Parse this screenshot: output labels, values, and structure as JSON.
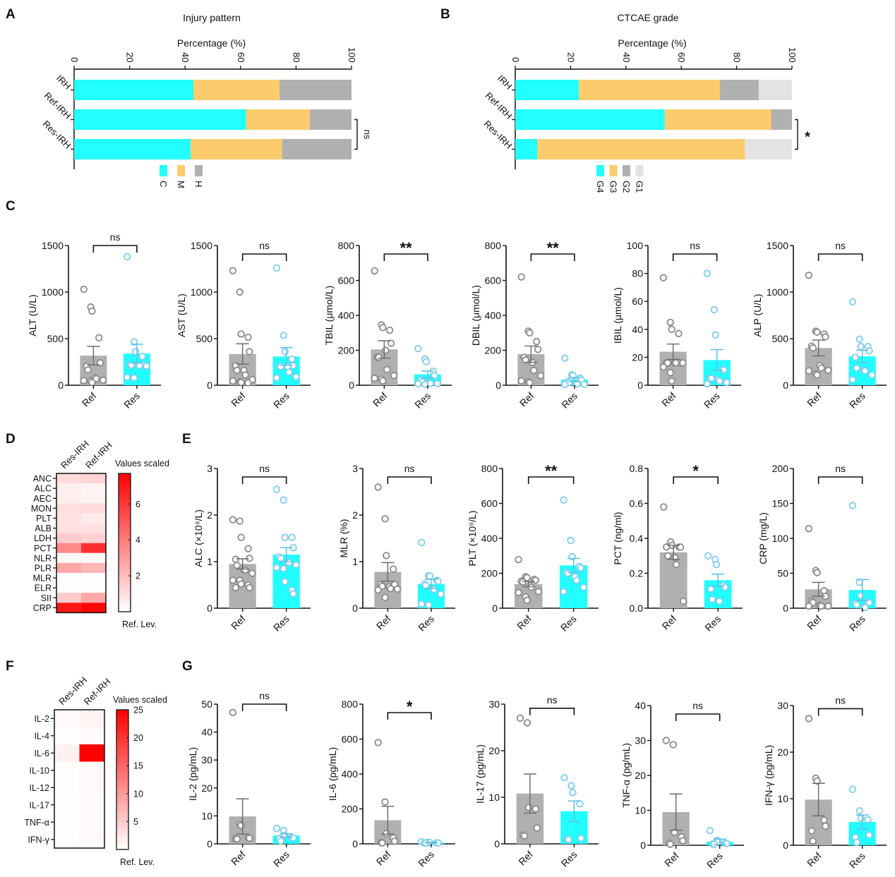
{
  "colors": {
    "cyan": "#22FFFF",
    "orange": "#FCCB6B",
    "gray": "#B0B0B0",
    "lightgray": "#E3E3E3",
    "ref_point": "#8A8A8A",
    "res_point": "#7FCCEB",
    "heat_max": "#FF0000",
    "axis": "#111111"
  },
  "panel_letters": [
    "A",
    "B",
    "C",
    "D",
    "E",
    "F",
    "G"
  ],
  "chart_data": [
    {
      "id": "A",
      "type": "bar",
      "orientation": "horizontal-stacked",
      "title": "Injury pattern",
      "xlabel": "Percentage (%)",
      "xlim": [
        0,
        100
      ],
      "xticks": [
        "0",
        "20",
        "40",
        "60",
        "80",
        "100"
      ],
      "categories": [
        "IRH",
        "Ref-IRH",
        "Res-IRH"
      ],
      "series": [
        {
          "name": "C",
          "color": "cyan",
          "values": [
            43,
            62,
            42
          ]
        },
        {
          "name": "M",
          "color": "orange",
          "values": [
            31,
            23,
            33
          ]
        },
        {
          "name": "H",
          "color": "gray",
          "values": [
            26,
            15,
            25
          ]
        }
      ],
      "comparison": {
        "between": [
          "Ref-IRH",
          "Res-IRH"
        ],
        "label": "ns"
      },
      "legend": [
        "C",
        "M",
        "H"
      ],
      "legend_position": "bottom"
    },
    {
      "id": "B",
      "type": "bar",
      "orientation": "horizontal-stacked",
      "title": "CTCAE grade",
      "xlabel": "Percentage (%)",
      "xlim": [
        0,
        100
      ],
      "xticks": [
        "0",
        "20",
        "40",
        "60",
        "80",
        "100"
      ],
      "categories": [
        "IRH",
        "Ref-IRH",
        "Res-IRH"
      ],
      "series": [
        {
          "name": "G4",
          "color": "cyan",
          "values": [
            23,
            54,
            8
          ]
        },
        {
          "name": "G3",
          "color": "orange",
          "values": [
            51,
            38.5,
            75
          ]
        },
        {
          "name": "G2",
          "color": "gray",
          "values": [
            14,
            7.5,
            0
          ]
        },
        {
          "name": "G1",
          "color": "lightgray",
          "values": [
            12,
            0,
            17
          ]
        }
      ],
      "comparison": {
        "between": [
          "Ref-IRH",
          "Res-IRH"
        ],
        "label": "*"
      },
      "legend": [
        "G4",
        "G3",
        "G2",
        "G1"
      ],
      "legend_position": "bottom"
    },
    {
      "id": "C1",
      "type": "bar",
      "ylabel": "ALT (U/L)",
      "ylim": [
        0,
        1500
      ],
      "yticks": [
        "0",
        "500",
        "1000",
        "1500"
      ],
      "categories": [
        "Ref",
        "Res"
      ],
      "means": [
        318,
        340
      ],
      "sem": [
        100,
        100
      ],
      "sig": "ns",
      "points": {
        "Ref": [
          1030,
          840,
          795,
          510,
          240,
          205,
          165,
          80,
          70,
          55,
          50,
          45,
          30
        ],
        "Res": [
          1380,
          465,
          360,
          310,
          220,
          220,
          215,
          215,
          210,
          205,
          85,
          80
        ]
      }
    },
    {
      "id": "C2",
      "type": "bar",
      "ylabel": "AST (U/L)",
      "ylim": [
        0,
        1500
      ],
      "yticks": [
        "0",
        "500",
        "1000",
        "1500"
      ],
      "categories": [
        "Ref",
        "Res"
      ],
      "means": [
        335,
        308
      ],
      "sem": [
        110,
        95
      ],
      "sig": "ns",
      "points": {
        "Ref": [
          1230,
          1000,
          550,
          515,
          360,
          210,
          160,
          160,
          110,
          60,
          45,
          35,
          30,
          25
        ],
        "Res": [
          1260,
          535,
          360,
          280,
          210,
          200,
          200,
          200,
          140,
          90,
          80
        ]
      }
    },
    {
      "id": "C3",
      "type": "bar",
      "ylabel": "TBIL (μmol/L)",
      "ylim": [
        0,
        800
      ],
      "yticks": [
        "0",
        "200",
        "400",
        "600",
        "800"
      ],
      "categories": [
        "Ref",
        "Res"
      ],
      "means": [
        205,
        62
      ],
      "sem": [
        50,
        20
      ],
      "sig": "**",
      "points": {
        "Ref": [
          655,
          345,
          330,
          315,
          240,
          160,
          160,
          200,
          90,
          55,
          40,
          35,
          25
        ],
        "Res": [
          210,
          150,
          135,
          80,
          55,
          30,
          20,
          15,
          10,
          10,
          8,
          5
        ]
      }
    },
    {
      "id": "C4",
      "type": "bar",
      "ylabel": "DBIL (μmol/L)",
      "ylim": [
        0,
        800
      ],
      "yticks": [
        "0",
        "200",
        "400",
        "600",
        "800"
      ],
      "categories": [
        "Ref",
        "Res"
      ],
      "means": [
        178,
        32
      ],
      "sem": [
        47,
        12
      ],
      "sig": "**",
      "points": {
        "Ref": [
          620,
          310,
          300,
          250,
          205,
          160,
          145,
          130,
          85,
          55,
          25,
          20,
          15
        ],
        "Res": [
          155,
          60,
          55,
          40,
          30,
          20,
          15,
          10,
          8,
          5,
          5
        ]
      }
    },
    {
      "id": "C5",
      "type": "bar",
      "ylabel": "IBIL (μmol/L)",
      "ylim": [
        0,
        100
      ],
      "yticks": [
        "0",
        "20",
        "40",
        "60",
        "80",
        "100"
      ],
      "categories": [
        "Ref",
        "Res"
      ],
      "means": [
        24,
        18
      ],
      "sem": [
        5.5,
        7.5
      ],
      "sig": "ns",
      "points": {
        "Ref": [
          77,
          45,
          40,
          37,
          16,
          16,
          16,
          16,
          16,
          16,
          13,
          9,
          3
        ],
        "Res": [
          80,
          54,
          36,
          11,
          11,
          5,
          5,
          4,
          3,
          2,
          1
        ]
      }
    },
    {
      "id": "C6",
      "type": "bar",
      "ylabel": "ALP (U/L)",
      "ylim": [
        0,
        1500
      ],
      "yticks": [
        "0",
        "500",
        "1000",
        "1500"
      ],
      "categories": [
        "Ref",
        "Res"
      ],
      "means": [
        400,
        310
      ],
      "sem": [
        85,
        65
      ],
      "sig": "ns",
      "points": {
        "Ref": [
          1180,
          580,
          570,
          550,
          520,
          420,
          400,
          210,
          185,
          160,
          155,
          120,
          110
        ],
        "Res": [
          895,
          495,
          415,
          415,
          370,
          300,
          185,
          160,
          155,
          110,
          60
        ]
      }
    },
    {
      "id": "D",
      "type": "heatmap",
      "columns": [
        "Res-IRH",
        "Ref-IRH"
      ],
      "rows": [
        "ANC",
        "ALC",
        "AEC",
        "MON",
        "PLT",
        "ALB",
        "LDH",
        "PCT",
        "NLR",
        "PLR",
        "MLR",
        "ELR",
        "SII",
        "CRP"
      ],
      "values": [
        [
          1.1,
          1.3
        ],
        [
          0.5,
          0.4
        ],
        [
          0.5,
          0.4
        ],
        [
          1.0,
          1.1
        ],
        [
          0.9,
          0.6
        ],
        [
          0.9,
          0.9
        ],
        [
          1.5,
          1.4
        ],
        [
          3.6,
          6.3
        ],
        [
          0.2,
          0.2
        ],
        [
          2.7,
          2.2
        ],
        [
          0.1,
          0.1
        ],
        [
          0.1,
          0.1
        ],
        [
          1.6,
          2.6
        ],
        [
          7.0,
          7.5
        ]
      ],
      "colorbar": {
        "title": "Values scaled",
        "ticks": [
          "2",
          "4",
          "6"
        ],
        "range": [
          0,
          7.7
        ],
        "bottom_label": "Ref. Lev."
      }
    },
    {
      "id": "E1",
      "type": "bar",
      "ylabel": "ALC (×10⁹/L)",
      "ylim": [
        0,
        3
      ],
      "yticks": [
        "0",
        "1",
        "2",
        "3"
      ],
      "categories": [
        "Ref",
        "Res"
      ],
      "means": [
        0.95,
        1.15
      ],
      "sem": [
        0.11,
        0.15
      ],
      "sig": "ns",
      "points": {
        "Ref": [
          1.9,
          1.87,
          1.52,
          1.28,
          1.07,
          1.05,
          0.92,
          0.82,
          0.82,
          0.75,
          0.6,
          0.6,
          0.52,
          0.5,
          0.44,
          0.44
        ],
        "Res": [
          2.55,
          2.32,
          1.52,
          1.52,
          1.3,
          1.1,
          1.07,
          0.98,
          0.98,
          0.93,
          0.87,
          0.85,
          0.57,
          0.39,
          0.31
        ]
      }
    },
    {
      "id": "E2",
      "type": "bar",
      "ylabel": "MLR (%)",
      "ylim": [
        0,
        3
      ],
      "yticks": [
        "0",
        "1",
        "2",
        "3"
      ],
      "categories": [
        "Ref",
        "Res"
      ],
      "means": [
        0.78,
        0.52
      ],
      "sem": [
        0.2,
        0.1
      ],
      "sig": "ns",
      "points": {
        "Ref": [
          2.6,
          1.92,
          1.13,
          0.84,
          0.51,
          0.51,
          0.47,
          0.46,
          0.42,
          0.41,
          0.39,
          0.23
        ],
        "Res": [
          1.41,
          0.7,
          0.69,
          0.6,
          0.58,
          0.52,
          0.49,
          0.42,
          0.4,
          0.3,
          0.09,
          0.07
        ]
      }
    },
    {
      "id": "E3",
      "type": "bar",
      "ylabel": "PLT (×10⁹/L)",
      "ylim": [
        0,
        800
      ],
      "yticks": [
        "0",
        "200",
        "400",
        "600",
        "800"
      ],
      "categories": [
        "Ref",
        "Res"
      ],
      "means": [
        138,
        245
      ],
      "sem": [
        15,
        40
      ],
      "sig": "**",
      "points": {
        "Ref": [
          278,
          180,
          175,
          165,
          160,
          155,
          150,
          130,
          120,
          95,
          90,
          65,
          45
        ],
        "Res": [
          620,
          388,
          295,
          240,
          230,
          205,
          200,
          180,
          160,
          120,
          95
        ]
      }
    },
    {
      "id": "E4",
      "type": "bar",
      "ylabel": "PCT (ng/ml)",
      "ylim": [
        0,
        0.8
      ],
      "yticks": [
        "0.0",
        "0.2",
        "0.4",
        "0.6",
        "0.8"
      ],
      "categories": [
        "Ref",
        "Res"
      ],
      "means": [
        0.32,
        0.16
      ],
      "sem": [
        0.04,
        0.035
      ],
      "sig": "*",
      "points": {
        "Ref": [
          0.58,
          0.38,
          0.36,
          0.35,
          0.35,
          0.35,
          0.3,
          0.29,
          0.25,
          0.04
        ],
        "Res": [
          0.3,
          0.28,
          0.25,
          0.13,
          0.12,
          0.11,
          0.05,
          0.04
        ]
      }
    },
    {
      "id": "E5",
      "type": "bar",
      "ylabel": "CRP (mg/L)",
      "ylim": [
        0,
        200
      ],
      "yticks": [
        "0",
        "50",
        "100",
        "150",
        "200"
      ],
      "categories": [
        "Ref",
        "Res"
      ],
      "means": [
        27,
        26
      ],
      "sem": [
        10,
        15
      ],
      "sig": "ns",
      "points": {
        "Ref": [
          114,
          54,
          51,
          25,
          17,
          10,
          8,
          4,
          3,
          3,
          3
        ],
        "Res": [
          147,
          37,
          18,
          9,
          8,
          7,
          5,
          1,
          1
        ]
      }
    },
    {
      "id": "F",
      "type": "heatmap",
      "columns": [
        "Res-IRH",
        "Ref-IRH"
      ],
      "rows": [
        "IL-2",
        "IL-4",
        "IL-6",
        "IL-10",
        "IL-12",
        "IL-17",
        "TNF-α",
        "IFN-γ"
      ],
      "values": [
        [
          0.6,
          1.1
        ],
        [
          0.3,
          0.4
        ],
        [
          1.4,
          25
        ],
        [
          0.3,
          0.6
        ],
        [
          0.3,
          0.6
        ],
        [
          0.3,
          0.5
        ],
        [
          0.2,
          0.5
        ],
        [
          0.3,
          0.6
        ]
      ],
      "colorbar": {
        "title": "Values scaled",
        "ticks": [
          "5",
          "10",
          "15",
          "20",
          "25"
        ],
        "range": [
          0,
          25
        ],
        "bottom_label": "Ref. Lev."
      }
    },
    {
      "id": "G1",
      "type": "bar",
      "ylabel": "IL-2 (pg/mL)",
      "ylim": [
        0,
        50
      ],
      "yticks": [
        "0",
        "10",
        "20",
        "30",
        "40",
        "50"
      ],
      "categories": [
        "Ref",
        "Res"
      ],
      "means": [
        9.8,
        3.0
      ],
      "sem": [
        6.3,
        0.6
      ],
      "sig": "ns",
      "points": {
        "Ref": [
          47,
          7,
          6.5,
          2.3,
          2,
          1.8,
          1.7
        ],
        "Res": [
          5.5,
          4.8,
          3,
          2.2,
          2.1,
          1.9,
          1
        ]
      }
    },
    {
      "id": "G2",
      "type": "bar",
      "ylabel": "IL-6 (pg/mL)",
      "ylim": [
        0,
        800
      ],
      "yticks": [
        "0",
        "200",
        "400",
        "600",
        "800"
      ],
      "categories": [
        "Ref",
        "Res"
      ],
      "means": [
        135,
        7
      ],
      "sem": [
        80,
        2
      ],
      "sig": "*",
      "points": {
        "Ref": [
          580,
          240,
          60,
          35,
          15,
          8,
          5
        ],
        "Res": [
          12,
          10,
          8,
          6,
          5,
          5,
          5
        ]
      }
    },
    {
      "id": "G3",
      "type": "bar",
      "ylabel": "IL-17 (pg/mL)",
      "ylim": [
        0,
        30
      ],
      "yticks": [
        "0",
        "10",
        "20",
        "30"
      ],
      "categories": [
        "Ref",
        "Res"
      ],
      "means": [
        10.8,
        7.0
      ],
      "sem": [
        4.2,
        2.2
      ],
      "sig": "ns",
      "points": {
        "Ref": [
          27,
          26,
          7.8,
          7.5,
          3.4,
          1.9,
          1.7
        ],
        "Res": [
          14.2,
          12.5,
          11,
          8.6,
          1.2,
          1,
          0.9
        ]
      }
    },
    {
      "id": "G4",
      "type": "bar",
      "ylabel": "TNF-α (pg/mL)",
      "ylim": [
        0,
        40
      ],
      "yticks": [
        "0",
        "10",
        "20",
        "30",
        "40"
      ],
      "categories": [
        "Ref",
        "Res"
      ],
      "means": [
        9.5,
        1.0
      ],
      "sem": [
        5.2,
        0.8
      ],
      "sig": "ns",
      "points": {
        "Ref": [
          30,
          28.8,
          3.7,
          2.4,
          1.3,
          0.6,
          0.3
        ],
        "Res": [
          4.2,
          1.4,
          1,
          0.7,
          0.5,
          0.4,
          0.3
        ]
      }
    },
    {
      "id": "G5",
      "type": "bar",
      "ylabel": "IFN-γ (pg/mL)",
      "ylim": [
        0,
        30
      ],
      "yticks": [
        "0",
        "10",
        "20",
        "30"
      ],
      "categories": [
        "Ref",
        "Res"
      ],
      "means": [
        9.8,
        5.0
      ],
      "sem": [
        3.5,
        1.5
      ],
      "sig": "ns",
      "points": {
        "Ref": [
          27.2,
          14.4,
          13.8,
          5.4,
          4.1,
          3.1,
          0.9
        ],
        "Res": [
          12,
          7.4,
          5.8,
          5.5,
          2.2,
          1.7,
          0.6
        ]
      }
    }
  ]
}
